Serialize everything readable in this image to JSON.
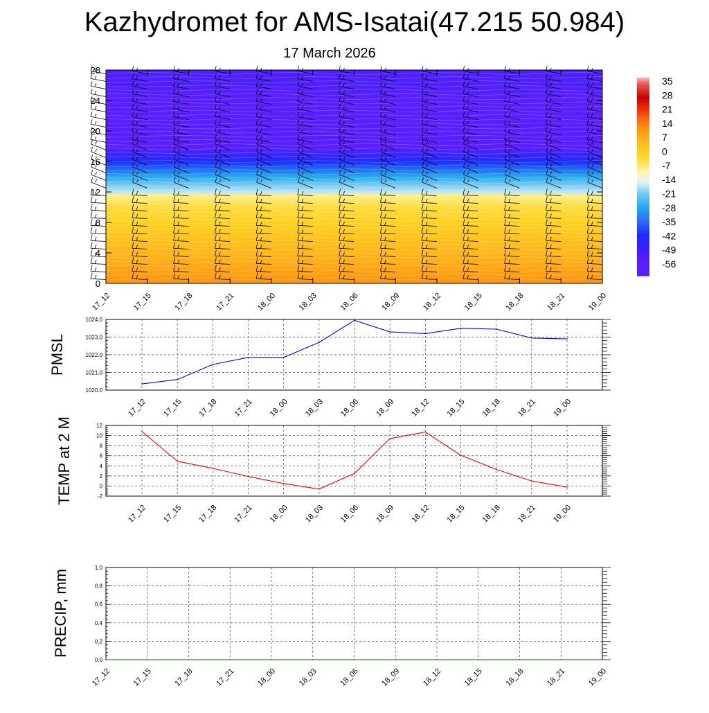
{
  "title": "Kazhydromet for AMS-Isatai(47.215 50.984)",
  "subtitle": "17 March 2026",
  "time_labels": [
    "17_12",
    "17_15",
    "17_18",
    "17_21",
    "18_00",
    "18_03",
    "18_06",
    "18_09",
    "18_12",
    "18_15",
    "18_18",
    "18_21",
    "19_00"
  ],
  "chart_data": [
    {
      "type": "heatmap",
      "panel": "upper-air temperature cross-section with wind barbs",
      "x": [
        "17_12",
        "17_15",
        "17_18",
        "17_21",
        "18_00",
        "18_03",
        "18_06",
        "18_09",
        "18_12",
        "18_15",
        "18_18",
        "18_21",
        "19_00"
      ],
      "yticks": [
        0,
        4,
        8,
        12,
        16,
        20,
        24,
        28
      ],
      "ylim": [
        0,
        28
      ],
      "colorbar_labels": [
        "35",
        "28",
        "21",
        "14",
        "7",
        "0",
        "-7",
        "-14",
        "-21",
        "-28",
        "-35",
        "-42",
        "-49",
        "-56"
      ],
      "colorbar_range": [
        -63,
        38
      ],
      "temperature_profile_by_level": [
        {
          "level": 0,
          "value": 12
        },
        {
          "level": 2,
          "value": 9
        },
        {
          "level": 4,
          "value": 6
        },
        {
          "level": 6,
          "value": 3
        },
        {
          "level": 8,
          "value": 0
        },
        {
          "level": 10,
          "value": -3
        },
        {
          "level": 11.5,
          "value": -8
        },
        {
          "level": 12,
          "value": -17
        },
        {
          "level": 14,
          "value": -28
        },
        {
          "level": 16,
          "value": -42
        },
        {
          "level": 18,
          "value": -57
        },
        {
          "level": 20,
          "value": -61
        },
        {
          "level": 22,
          "value": -60
        },
        {
          "level": 24,
          "value": -57
        },
        {
          "level": 26,
          "value": -54
        },
        {
          "level": 28,
          "value": -53
        }
      ],
      "wind_barbs": "present at every time step and level",
      "colors": {
        "cold": "#5a1fff",
        "blue": "#1e2bff",
        "cyan": "#22aaf0",
        "pale": "#e6f2f8",
        "yellow": "#ffe24d",
        "orange": "#ff8a0e",
        "red": "#c80000"
      }
    },
    {
      "type": "line",
      "ylabel": "PMSL",
      "x": [
        "17_12",
        "17_15",
        "17_18",
        "17_21",
        "18_00",
        "18_03",
        "18_06",
        "18_09",
        "18_12",
        "18_15",
        "18_18",
        "18_21",
        "19_00"
      ],
      "values": [
        1020.35,
        1020.6,
        1021.45,
        1021.85,
        1021.85,
        1022.7,
        1023.95,
        1023.3,
        1023.2,
        1023.5,
        1023.45,
        1022.95,
        1022.9
      ],
      "ylim": [
        1020,
        1024
      ],
      "yticks": [
        "1020.0",
        "1021.0",
        "1022.0",
        "1023.0",
        "1024.0"
      ],
      "color": "#0000ff",
      "grid": true
    },
    {
      "type": "line",
      "ylabel": "TEMP at 2 M",
      "x": [
        "17_12",
        "17_15",
        "17_18",
        "17_21",
        "18_00",
        "18_03",
        "18_06",
        "18_09",
        "18_12",
        "18_15",
        "18_18",
        "18_21",
        "19_00"
      ],
      "values": [
        10.8,
        4.9,
        3.5,
        1.9,
        0.5,
        -0.6,
        2.5,
        9.4,
        10.7,
        6.1,
        3.3,
        1.0,
        -0.2
      ],
      "ylim": [
        -2,
        12
      ],
      "yticks": [
        "-2",
        "0",
        "2",
        "4",
        "6",
        "8",
        "10",
        "12"
      ],
      "color": "#ff0000",
      "grid": true
    },
    {
      "type": "line",
      "ylabel": "PRECIP, mm",
      "x": [
        "17_12",
        "17_15",
        "17_18",
        "17_21",
        "18_00",
        "18_03",
        "18_06",
        "18_09",
        "18_12",
        "18_15",
        "18_18",
        "18_21",
        "19_00"
      ],
      "values": [
        0,
        0,
        0,
        0,
        0,
        0,
        0,
        0,
        0,
        0,
        0,
        0,
        0
      ],
      "ylim": [
        0,
        1
      ],
      "yticks": [
        "0.0",
        "0.2",
        "0.4",
        "0.6",
        "0.8",
        "1.0"
      ],
      "color": "#006400",
      "grid": true
    }
  ]
}
